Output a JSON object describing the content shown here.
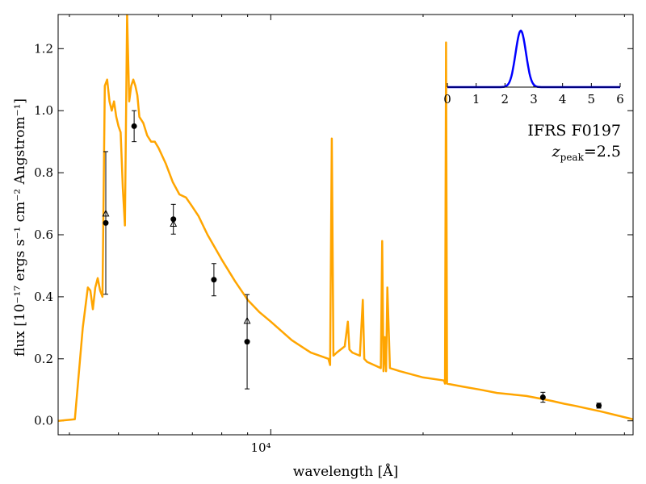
{
  "chart_data": {
    "type": "line",
    "xlabel": "wavelength [Å]",
    "ylabel": "flux [10⁻¹⁷ ergs s⁻¹ cm⁻² Angstrom⁻¹]",
    "xscale": "log",
    "xlim": [
      3800,
      52000
    ],
    "ylim": [
      -0.045,
      1.31
    ],
    "yticks": [
      0.0,
      0.2,
      0.4,
      0.6,
      0.8,
      1.0,
      1.2
    ],
    "ytick_labels": [
      "0.0",
      "0.2",
      "0.4",
      "0.6",
      "0.8",
      "1.0",
      "1.2"
    ],
    "xtick_major": [
      10000
    ],
    "xtick_major_label": "10⁴",
    "grid": false,
    "colors": {
      "model": "#FFA500",
      "points": "#000000",
      "inset": "#0000FF"
    },
    "annotation": {
      "object": "IFRS F0197",
      "z_symbol": "z",
      "z_subscript": "peak",
      "z_equals": "=",
      "z_value": "2.5"
    },
    "model_sed": {
      "x": [
        3800,
        4100,
        4250,
        4350,
        4400,
        4450,
        4500,
        4550,
        4600,
        4650,
        4700,
        4750,
        4800,
        4850,
        4900,
        4950,
        5000,
        5050,
        5100,
        5150,
        5200,
        5250,
        5300,
        5350,
        5400,
        5450,
        5500,
        5600,
        5700,
        5800,
        5900,
        6000,
        6200,
        6400,
        6600,
        6800,
        7000,
        7200,
        7500,
        8000,
        8500,
        9000,
        9500,
        10000,
        11000,
        12000,
        13000,
        13100,
        13200,
        13300,
        13500,
        14000,
        14200,
        14300,
        14500,
        15000,
        15200,
        15300,
        15500,
        16000,
        16500,
        16600,
        16700,
        16800,
        16900,
        17000,
        17200,
        18000,
        20000,
        22000,
        22100,
        22200,
        22300,
        24000,
        26000,
        28000,
        30000,
        32000,
        34000,
        36000,
        38000,
        40000,
        45000,
        52000
      ],
      "y": [
        0.0,
        0.005,
        0.3,
        0.43,
        0.42,
        0.36,
        0.43,
        0.46,
        0.42,
        0.4,
        1.08,
        1.1,
        1.03,
        1.0,
        1.03,
        0.98,
        0.95,
        0.93,
        0.75,
        0.63,
        1.31,
        1.03,
        1.08,
        1.1,
        1.08,
        1.05,
        0.98,
        0.96,
        0.92,
        0.9,
        0.9,
        0.88,
        0.83,
        0.77,
        0.73,
        0.72,
        0.69,
        0.66,
        0.6,
        0.52,
        0.45,
        0.39,
        0.35,
        0.32,
        0.26,
        0.22,
        0.2,
        0.18,
        0.91,
        0.21,
        0.22,
        0.24,
        0.32,
        0.23,
        0.22,
        0.21,
        0.39,
        0.2,
        0.19,
        0.18,
        0.17,
        0.58,
        0.16,
        0.27,
        0.16,
        0.43,
        0.17,
        0.16,
        0.14,
        0.13,
        0.12,
        1.22,
        0.12,
        0.11,
        0.1,
        0.09,
        0.085,
        0.08,
        0.072,
        0.064,
        0.055,
        0.048,
        0.03,
        0.005
      ]
    },
    "photometry": [
      {
        "x": 4720,
        "y": 0.638,
        "yerr": 0.23
      },
      {
        "x": 5370,
        "y": 0.95,
        "yerr": 0.05
      },
      {
        "x": 6420,
        "y": 0.65,
        "yerr": 0.048
      },
      {
        "x": 7720,
        "y": 0.455,
        "yerr": 0.052
      },
      {
        "x": 8980,
        "y": 0.255,
        "yerr": 0.152
      },
      {
        "x": 34500,
        "y": 0.076,
        "yerr": 0.016
      },
      {
        "x": 44500,
        "y": 0.049,
        "yerr": 0.008
      }
    ],
    "model_photometry": [
      {
        "x": 4720,
        "y": 0.668
      },
      {
        "x": 6420,
        "y": 0.635
      },
      {
        "x": 8980,
        "y": 0.322
      }
    ],
    "inset": {
      "type": "line",
      "xlim": [
        0,
        6
      ],
      "xticks": [
        0,
        1,
        2,
        3,
        4,
        5,
        6
      ],
      "xtick_labels": [
        "0",
        "1",
        "2",
        "3",
        "4",
        "5",
        "6"
      ],
      "pdf": {
        "peak": 2.55,
        "sigma": 0.18,
        "amplitude": 1.0
      }
    }
  }
}
